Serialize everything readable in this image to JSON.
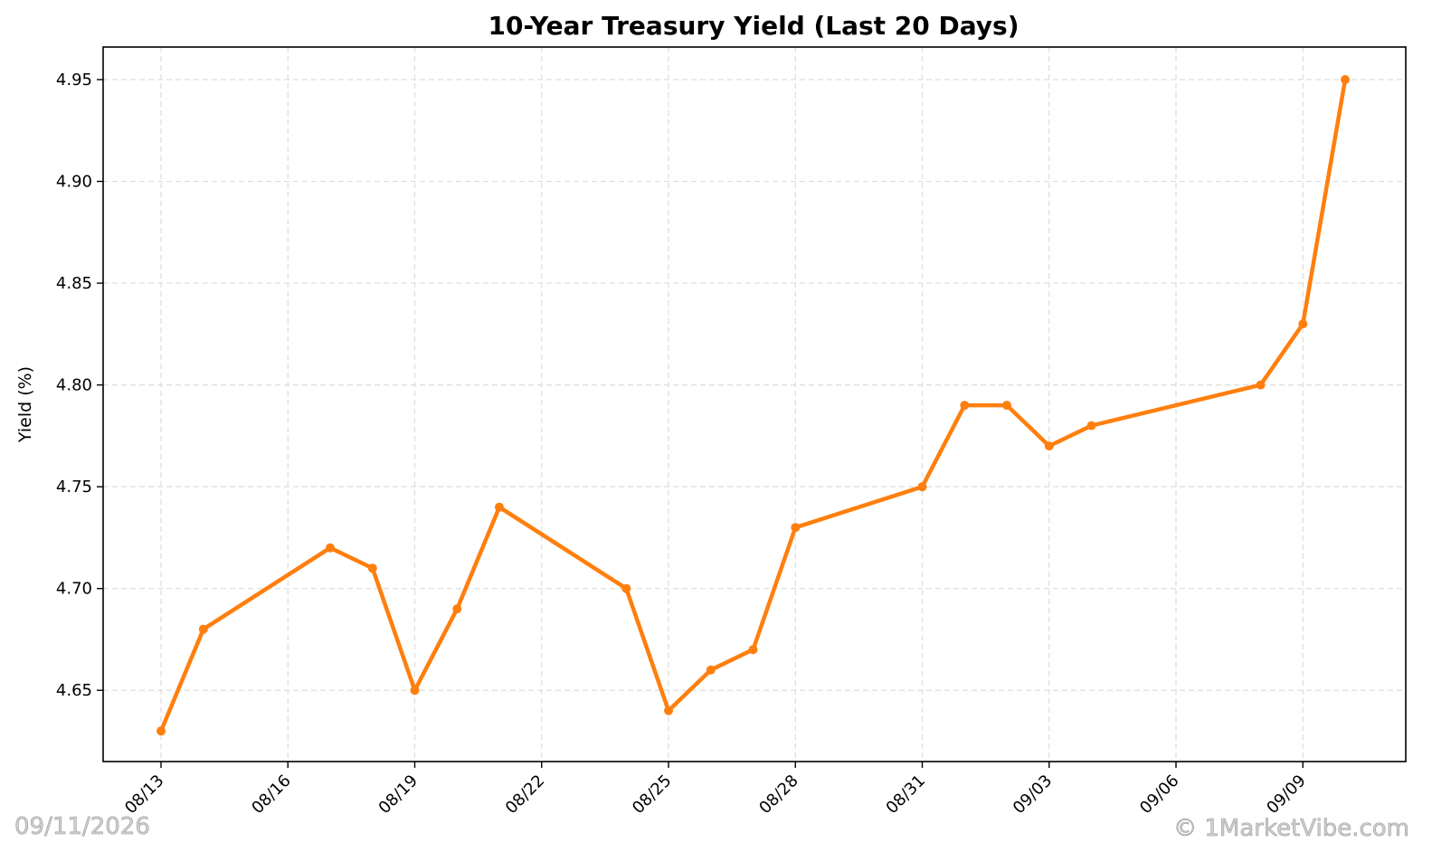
{
  "chart_data": {
    "type": "line",
    "title": "10-Year Treasury Yield (Last 20 Days)",
    "xlabel": "",
    "ylabel": "Yield (%)",
    "x_ticks": [
      "08/13",
      "08/16",
      "08/19",
      "08/22",
      "08/25",
      "08/28",
      "08/31",
      "09/03",
      "09/06",
      "09/09"
    ],
    "y_ticks": [
      "4.65",
      "4.70",
      "4.75",
      "4.80",
      "4.85",
      "4.90",
      "4.95"
    ],
    "ylim": [
      4.615,
      4.966
    ],
    "grid": true,
    "series": [
      {
        "color": "#ff7f0e",
        "points": [
          {
            "date": "2026-08-13",
            "value": 4.63
          },
          {
            "date": "2026-08-14",
            "value": 4.68
          },
          {
            "date": "2026-08-17",
            "value": 4.72
          },
          {
            "date": "2026-08-18",
            "value": 4.71
          },
          {
            "date": "2026-08-19",
            "value": 4.65
          },
          {
            "date": "2026-08-20",
            "value": 4.69
          },
          {
            "date": "2026-08-21",
            "value": 4.74
          },
          {
            "date": "2026-08-24",
            "value": 4.7
          },
          {
            "date": "2026-08-25",
            "value": 4.64
          },
          {
            "date": "2026-08-26",
            "value": 4.66
          },
          {
            "date": "2026-08-27",
            "value": 4.67
          },
          {
            "date": "2026-08-28",
            "value": 4.73
          },
          {
            "date": "2026-08-31",
            "value": 4.75
          },
          {
            "date": "2026-09-01",
            "value": 4.79
          },
          {
            "date": "2026-09-02",
            "value": 4.79
          },
          {
            "date": "2026-09-03",
            "value": 4.77
          },
          {
            "date": "2026-09-04",
            "value": 4.78
          },
          {
            "date": "2026-09-08",
            "value": 4.8
          },
          {
            "date": "2026-09-09",
            "value": 4.83
          },
          {
            "date": "2026-09-10",
            "value": 4.95
          }
        ]
      }
    ]
  },
  "watermark": {
    "date": "09/11/2026",
    "brand": "© 1MarketVibe.com"
  }
}
